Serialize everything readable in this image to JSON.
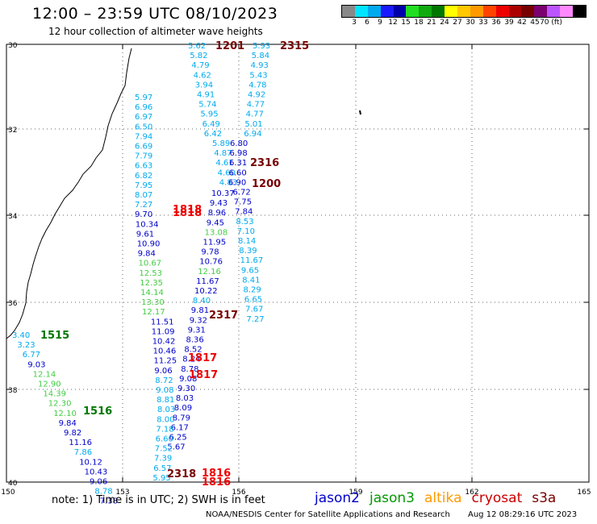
{
  "header": {
    "title": "12:00 – 23:59 UTC 08/10/2023",
    "subtitle": "12 hour collection of altimeter wave heights"
  },
  "legend": {
    "colors": [
      "#888888",
      "#00e5ff",
      "#00aaee",
      "#1a1aff",
      "#0000aa",
      "#22dd22",
      "#11aa11",
      "#007700",
      "#ffff00",
      "#ffc800",
      "#ff9900",
      "#ff4400",
      "#ee0000",
      "#aa0000",
      "#770000",
      "#7a0070",
      "#bb55ff",
      "#ff88ff",
      "#000000"
    ],
    "labels": [
      "3",
      "6",
      "9",
      "12",
      "15",
      "18",
      "21",
      "24",
      "27",
      "30",
      "33",
      "36",
      "39",
      "42",
      "45",
      "70 (ft)"
    ]
  },
  "axes": {
    "lon_ticks": [
      "150",
      "153",
      "156",
      "159",
      "162",
      "165"
    ],
    "lat_ticks": [
      "30",
      "32",
      "34",
      "36",
      "38",
      "40"
    ]
  },
  "passes": [
    {
      "label": "1201",
      "color": "#770000"
    },
    {
      "label": "2315",
      "color": "#770000"
    },
    {
      "label": "2316",
      "color": "#770000"
    },
    {
      "label": "1200",
      "color": "#770000"
    },
    {
      "label": "1818",
      "color": "#ee0000"
    },
    {
      "label": "1818",
      "color": "#ee0000"
    },
    {
      "label": "2317",
      "color": "#770000"
    },
    {
      "label": "1515",
      "color": "#007700"
    },
    {
      "label": "1817",
      "color": "#ee0000"
    },
    {
      "label": "1817",
      "color": "#ee0000"
    },
    {
      "label": "1516",
      "color": "#007700"
    },
    {
      "label": "2318",
      "color": "#770000"
    },
    {
      "label": "1816",
      "color": "#ee0000"
    },
    {
      "label": "1816",
      "color": "#ee0000"
    }
  ],
  "track_values": {
    "t1": [
      "5.62",
      "5.82",
      "4.79",
      "4.62",
      "3.94",
      "4.91",
      "5.74",
      "5.95",
      "6.49",
      "6.42",
      "5.89",
      "4.87",
      "4.61",
      "4.60",
      "4.83"
    ],
    "t2": [
      "5.93",
      "5.84",
      "4.93",
      "5.43",
      "4.78",
      "4.92",
      "4.77",
      "4.77",
      "5.01",
      "6.94",
      "6.80",
      "6.98",
      "6.31",
      "6.60",
      "6.90",
      "6.72",
      "7.75",
      "7.84",
      "8.53",
      "7.10",
      "8.14",
      "8.39",
      "11.67",
      "9.65",
      "8.41",
      "8.29",
      "6.65",
      "7.67",
      "7.27"
    ],
    "t3": [
      "10.37",
      "9.43",
      "8.96",
      "9.45",
      "13.08",
      "11.95",
      "9.78",
      "10.76",
      "12.16",
      "11.67",
      "10.22",
      "8.40",
      "9.81",
      "9.32",
      "9.31",
      "8.36",
      "8.52",
      "8.24",
      "8.78",
      "9.08",
      "9.30",
      "8.03",
      "8.09",
      "8.79",
      "6.17",
      "6.25",
      "5.67"
    ],
    "t4": [
      "5.97",
      "6.96",
      "6.97",
      "6.50",
      "7.94",
      "6.69",
      "7.79",
      "6.63",
      "6.82",
      "7.95",
      "8.07",
      "7.27",
      "9.70",
      "10.34",
      "9.61",
      "10.90",
      "9.84",
      "10.67",
      "12.53",
      "12.35",
      "14.14",
      "13.30",
      "12.17",
      "11.51",
      "11.09",
      "10.42",
      "10.46",
      "11.25",
      "9.06",
      "8.72",
      "9.08",
      "8.81",
      "8.03",
      "8.00",
      "7.18",
      "6.60",
      "7.52",
      "7.39",
      "6.57",
      "5.95"
    ],
    "t5": [
      "3.40",
      "3.23",
      "6.77",
      "9.03",
      "12.14",
      "12.90",
      "14.39",
      "12.30",
      "12.10",
      "9.84",
      "9.82",
      "11.16",
      "7.86",
      "10.12",
      "10.43",
      "9.06",
      "8.78",
      "7.38"
    ]
  },
  "note": "note:  1) Time is in UTC;  2) SWH is in feet",
  "satellites": [
    {
      "name": "jason2",
      "color": "#0000cc"
    },
    {
      "name": "jason3",
      "color": "#009900"
    },
    {
      "name": "altika",
      "color": "#ff9900"
    },
    {
      "name": "cryosat",
      "color": "#cc0000"
    },
    {
      "name": "s3a",
      "color": "#770000"
    }
  ],
  "footer": {
    "center": "NOAA/NESDIS Center for Satellite Applications and Research",
    "timestamp": "Aug 12 08:29:16 UTC 2023"
  }
}
